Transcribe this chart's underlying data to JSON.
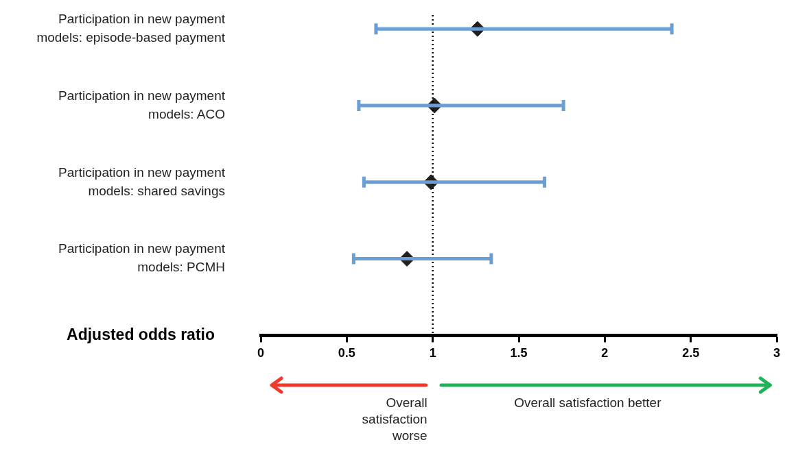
{
  "chart_data": {
    "type": "scatter",
    "orientation": "horizontal",
    "categories": [
      "Participation in new payment models: episode-based payment",
      "Participation in new payment models: ACO",
      "Participation in new payment models: shared savings",
      "Participation in new payment models: PCMH"
    ],
    "values": [
      1.26,
      1.01,
      0.99,
      0.85
    ],
    "errors": [
      [
        0.67,
        2.39
      ],
      [
        0.57,
        1.76
      ],
      [
        0.6,
        1.65
      ],
      [
        0.54,
        1.34
      ]
    ],
    "color": "#231f20",
    "marker": "diamond",
    "xlabel": "Adjusted odds ratio",
    "xlim": [
      0,
      3
    ],
    "xticks": [
      0,
      0.5,
      1,
      1.5,
      2,
      2.5,
      3
    ],
    "ref_lines": [
      {
        "axis": "x",
        "value": 1,
        "line_style": "dotted",
        "color": "#000000"
      }
    ],
    "annotations": [
      "Overall satisfaction worse",
      "Overall satisfaction better"
    ],
    "grid": false,
    "legend": false
  }
}
